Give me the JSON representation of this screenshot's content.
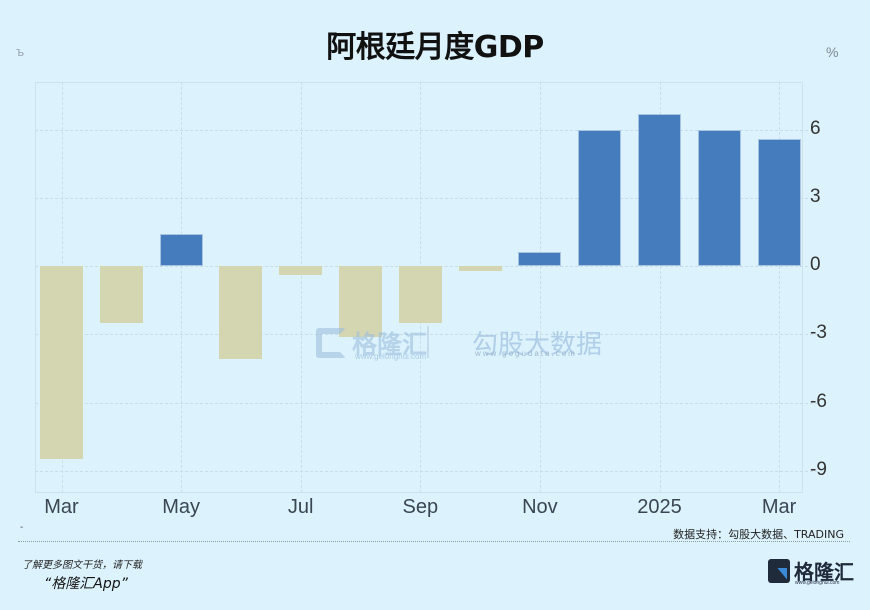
{
  "header": {
    "title": "阿根廷月度GDP",
    "unit_left": "%",
    "unit_right": "%"
  },
  "axis": {
    "y_ticks": [
      "6",
      "3",
      "0",
      "-3",
      "-6",
      "-9"
    ],
    "x_ticks": [
      "Mar",
      "May",
      "Jul",
      "Sep",
      "Nov",
      "2025",
      "Mar"
    ]
  },
  "watermark": {
    "brand": "格隆汇",
    "brand_url": "www.gelonghui.com",
    "partner": "勾股大数据",
    "partner_url": "www.gogudata.com"
  },
  "footer": {
    "source": "数据支持：勾股大数据、TRADING",
    "promo_line1": "了解更多图文干货，请下载",
    "promo_line2": "“格隆汇App”",
    "logo_text": "格隆汇",
    "logo_url": "www.gelonghui.com"
  },
  "colors": {
    "positive": "#457cbd",
    "negative": "#d4d5b1",
    "background": "#dcf3fe"
  },
  "chart_data": {
    "type": "bar",
    "title": "阿根廷月度GDP",
    "xlabel": "",
    "ylabel": "%",
    "ylim": [
      -10,
      8
    ],
    "grid": true,
    "legend": "none",
    "categories": [
      "2024-03",
      "2024-04",
      "2024-05",
      "2024-06",
      "2024-07",
      "2024-08",
      "2024-09",
      "2024-10",
      "2024-11",
      "2024-12",
      "2025-01",
      "2025-02",
      "2025-03"
    ],
    "x_tick_labels": [
      "Mar",
      "May",
      "Jul",
      "Sep",
      "Nov",
      "2025",
      "Mar"
    ],
    "y_tick_labels": [
      "6",
      "3",
      "0",
      "-3",
      "-6",
      "-9"
    ],
    "values": [
      -8.5,
      -2.5,
      1.4,
      -4.1,
      -0.4,
      -3.1,
      -2.5,
      -0.2,
      0.6,
      6.0,
      6.7,
      6.0,
      5.6
    ]
  }
}
